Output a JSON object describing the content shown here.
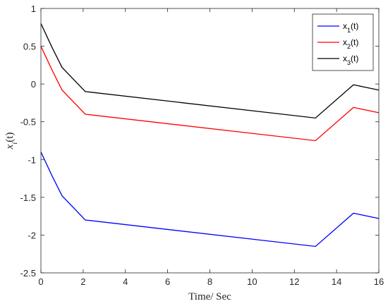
{
  "chart_data": {
    "type": "line",
    "title": "",
    "xlabel": "Time/ Sec",
    "ylabel": "x_i(t)",
    "xlim": [
      0,
      16
    ],
    "ylim": [
      -2.5,
      1
    ],
    "xticks": [
      0,
      2,
      4,
      6,
      8,
      10,
      12,
      14,
      16
    ],
    "yticks": [
      -2.5,
      -2,
      -1.5,
      -1,
      -0.5,
      0,
      0.5,
      1
    ],
    "xtick_labels": [
      "0",
      "2",
      "4",
      "6",
      "8",
      "10",
      "12",
      "14",
      "16"
    ],
    "ytick_labels": [
      "-2.5",
      "-2",
      "-1.5",
      "-1",
      "-0.5",
      "0",
      "0.5",
      "1"
    ],
    "grid": false,
    "legend_position": "top-right",
    "series": [
      {
        "name": "x",
        "subscript": "1",
        "suffix": "(t)",
        "color": "#0000ff",
        "x": [
          0,
          0.5,
          1,
          2.1,
          13,
          14.8,
          16
        ],
        "y": [
          -0.9,
          -1.2,
          -1.48,
          -1.8,
          -2.15,
          -1.71,
          -1.78
        ]
      },
      {
        "name": "x",
        "subscript": "2",
        "suffix": "(t)",
        "color": "#ff0000",
        "x": [
          0,
          0.5,
          1,
          2.1,
          13,
          14.8,
          16
        ],
        "y": [
          0.5,
          0.2,
          -0.08,
          -0.4,
          -0.75,
          -0.31,
          -0.38
        ]
      },
      {
        "name": "x",
        "subscript": "3",
        "suffix": "(t)",
        "color": "#000000",
        "x": [
          0,
          0.5,
          1,
          2.1,
          13,
          14.8,
          16
        ],
        "y": [
          0.8,
          0.5,
          0.22,
          -0.1,
          -0.45,
          -0.01,
          -0.08
        ]
      }
    ]
  }
}
